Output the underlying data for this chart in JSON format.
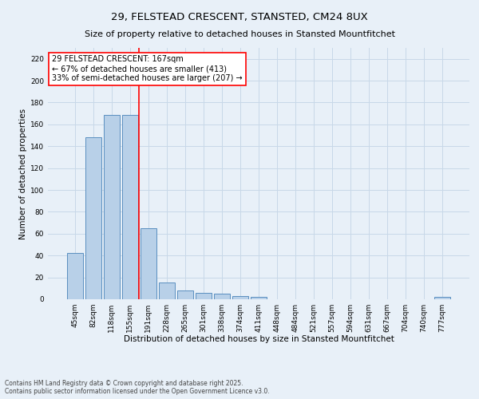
{
  "title": "29, FELSTEAD CRESCENT, STANSTED, CM24 8UX",
  "subtitle": "Size of property relative to detached houses in Stansted Mountfitchet",
  "xlabel": "Distribution of detached houses by size in Stansted Mountfitchet",
  "ylabel": "Number of detached properties",
  "categories": [
    "45sqm",
    "82sqm",
    "118sqm",
    "155sqm",
    "191sqm",
    "228sqm",
    "265sqm",
    "301sqm",
    "338sqm",
    "374sqm",
    "411sqm",
    "448sqm",
    "484sqm",
    "521sqm",
    "557sqm",
    "594sqm",
    "631sqm",
    "667sqm",
    "704sqm",
    "740sqm",
    "777sqm"
  ],
  "values": [
    42,
    148,
    169,
    169,
    65,
    15,
    8,
    6,
    5,
    3,
    2,
    0,
    0,
    0,
    0,
    0,
    0,
    0,
    0,
    0,
    2
  ],
  "bar_color": "#b8d0e8",
  "bar_edge_color": "#5a8fc0",
  "highlight_line_color": "red",
  "annotation_line1": "29 FELSTEAD CRESCENT: 167sqm",
  "annotation_line2": "← 67% of detached houses are smaller (413)",
  "annotation_line3": "33% of semi-detached houses are larger (207) →",
  "annotation_box_color": "white",
  "annotation_box_edge_color": "red",
  "ylim": [
    0,
    230
  ],
  "yticks": [
    0,
    20,
    40,
    60,
    80,
    100,
    120,
    140,
    160,
    180,
    200,
    220
  ],
  "grid_color": "#c8d8e8",
  "background_color": "#e8f0f8",
  "footer_line1": "Contains HM Land Registry data © Crown copyright and database right 2025.",
  "footer_line2": "Contains public sector information licensed under the Open Government Licence v3.0.",
  "title_fontsize": 9.5,
  "subtitle_fontsize": 8,
  "xlabel_fontsize": 7.5,
  "ylabel_fontsize": 7.5,
  "tick_fontsize": 6.5,
  "annotation_fontsize": 7,
  "footer_fontsize": 5.5
}
